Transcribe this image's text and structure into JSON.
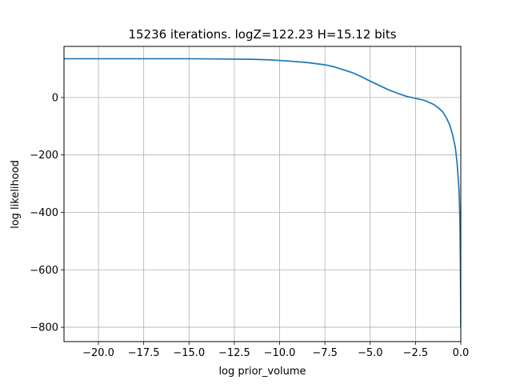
{
  "chart_data": {
    "type": "line",
    "title": "15236 iterations. logZ=122.23 H=15.12 bits",
    "xlabel": "log prior_volume",
    "ylabel": "log likelihood",
    "xlim": [
      -21.9,
      0.0
    ],
    "ylim": [
      -850,
      178
    ],
    "grid": true,
    "x_ticks": [
      -20.0,
      -17.5,
      -15.0,
      -12.5,
      -10.0,
      -7.5,
      -5.0,
      -2.5,
      0.0
    ],
    "x_tick_labels": [
      "−20.0",
      "−17.5",
      "−15.0",
      "−12.5",
      "−10.0",
      "−7.5",
      "−5.0",
      "−2.5",
      "0.0"
    ],
    "y_ticks": [
      0,
      -200,
      -400,
      -600,
      -800
    ],
    "y_tick_labels": [
      "0",
      "−200",
      "−400",
      "−600",
      "−800"
    ],
    "series": [
      {
        "color": "#1f77b4",
        "x": [
          -21.9,
          -20.0,
          -17.5,
          -15.0,
          -13.0,
          -11.5,
          -10.5,
          -9.5,
          -8.5,
          -7.5,
          -7.0,
          -6.5,
          -6.0,
          -5.5,
          -5.0,
          -4.5,
          -4.0,
          -3.5,
          -3.0,
          -2.5,
          -2.0,
          -1.5,
          -1.2,
          -1.0,
          -0.8,
          -0.6,
          -0.45,
          -0.3,
          -0.2,
          -0.1,
          -0.05,
          -0.02,
          0.0
        ],
        "y": [
          135,
          135,
          135,
          135,
          134,
          133,
          131,
          127,
          122,
          114,
          107,
          97,
          87,
          73,
          57,
          42,
          27,
          15,
          4,
          -3,
          -10,
          -24,
          -38,
          -50,
          -70,
          -97,
          -130,
          -175,
          -230,
          -320,
          -420,
          -600,
          -800
        ]
      }
    ]
  }
}
